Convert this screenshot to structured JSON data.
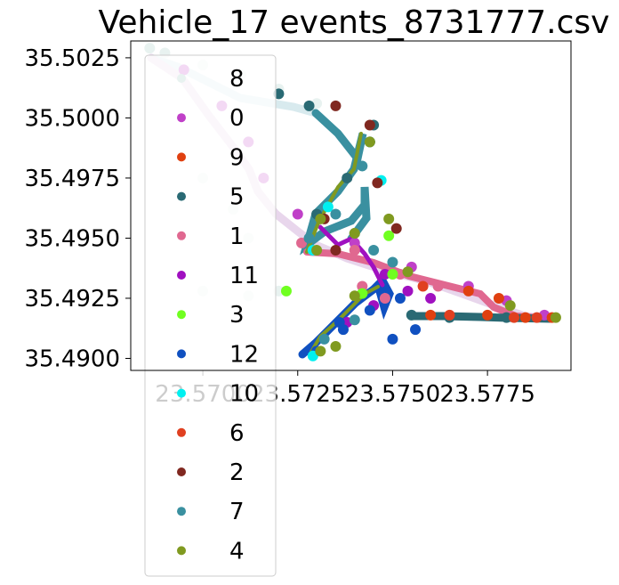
{
  "chart_data": {
    "type": "scatter",
    "title": "Vehicle_17 events_8731777.csv",
    "xlabel": "",
    "ylabel": "",
    "xlim": [
      23.5681,
      23.5797
    ],
    "ylim": [
      35.4895,
      35.5032
    ],
    "x_ticks": [
      23.57,
      23.5725,
      23.575,
      23.5775
    ],
    "x_tick_labels": [
      "23.5700",
      "23.5725",
      "23.5750",
      "23.5775"
    ],
    "y_ticks": [
      35.49,
      35.4925,
      35.495,
      35.4975,
      35.5,
      35.5025
    ],
    "y_tick_labels": [
      "35.4900",
      "35.4925",
      "35.4950",
      "35.4975",
      "35.5000",
      "35.5025"
    ],
    "grid": false,
    "legend_position": "top-left",
    "series": [
      {
        "name": "8",
        "color": "#e8f2f0",
        "points": [
          [
            23.5686,
            35.5029
          ],
          [
            23.569,
            35.5027
          ],
          [
            23.57,
            35.5022
          ],
          [
            23.571,
            35.5018
          ],
          [
            23.572,
            35.5012
          ],
          [
            23.573,
            35.5006
          ],
          [
            23.5735,
            35.5005
          ],
          [
            23.57,
            35.4975
          ],
          [
            23.5708,
            35.4962
          ],
          [
            23.5712,
            35.495
          ],
          [
            23.57,
            35.4928
          ],
          [
            23.5712,
            35.4926
          ],
          [
            23.572,
            35.4928
          ]
        ]
      },
      {
        "name": "0",
        "color": "#c040c8",
        "points": [
          [
            23.5695,
            35.502
          ],
          [
            23.5705,
            35.5005
          ],
          [
            23.5712,
            35.499
          ],
          [
            23.5716,
            35.4975
          ],
          [
            23.5725,
            35.496
          ],
          [
            23.574,
            35.4948
          ],
          [
            23.5755,
            35.4938
          ],
          [
            23.577,
            35.493
          ],
          [
            23.578,
            35.4924
          ],
          [
            23.579,
            35.4918
          ]
        ]
      },
      {
        "name": "9",
        "color": "#e04010",
        "points": [
          [
            23.576,
            35.4918
          ],
          [
            23.5775,
            35.4918
          ],
          [
            23.5785,
            35.4917
          ],
          [
            23.5792,
            35.4917
          ],
          [
            23.577,
            35.4928
          ],
          [
            23.5778,
            35.4925
          ]
        ]
      },
      {
        "name": "5",
        "color": "#2a6a74",
        "points": [
          [
            23.5755,
            35.4918
          ],
          [
            23.5765,
            35.4917
          ],
          [
            23.578,
            35.4917
          ],
          [
            23.573,
            35.496
          ],
          [
            23.5738,
            35.4975
          ],
          [
            23.5744,
            35.499
          ],
          [
            23.5745,
            35.4997
          ],
          [
            23.572,
            35.501
          ],
          [
            23.5728,
            35.5005
          ]
        ]
      },
      {
        "name": "1",
        "color": "#e06890",
        "points": [
          [
            23.5726,
            35.4948
          ],
          [
            23.574,
            35.4945
          ],
          [
            23.5752,
            35.4935
          ],
          [
            23.5762,
            35.493
          ],
          [
            23.5742,
            35.493
          ],
          [
            23.5748,
            35.4925
          ]
        ]
      },
      {
        "name": "11",
        "color": "#a010c0",
        "points": [
          [
            23.5748,
            35.4935
          ],
          [
            23.5754,
            35.4928
          ],
          [
            23.576,
            35.4925
          ],
          [
            23.5738,
            35.4915
          ],
          [
            23.5745,
            35.4922
          ]
        ]
      },
      {
        "name": "3",
        "color": "#70ff20",
        "points": [
          [
            23.5722,
            35.4928
          ],
          [
            23.5749,
            35.4951
          ],
          [
            23.5742,
            35.4927
          ],
          [
            23.575,
            35.4935
          ]
        ]
      },
      {
        "name": "12",
        "color": "#1050c0",
        "points": [
          [
            23.573,
            35.4903
          ],
          [
            23.5737,
            35.4912
          ],
          [
            23.5744,
            35.492
          ],
          [
            23.5752,
            35.4925
          ],
          [
            23.5756,
            35.4912
          ],
          [
            23.575,
            35.4908
          ],
          [
            23.5736,
            35.4915
          ]
        ]
      },
      {
        "name": "10",
        "color": "#00f0f0",
        "points": [
          [
            23.5729,
            35.4901
          ],
          [
            23.5729,
            35.4945
          ],
          [
            23.5747,
            35.4974
          ],
          [
            23.5733,
            35.4963
          ]
        ]
      },
      {
        "name": "6",
        "color": "#e04020",
        "points": [
          [
            23.5765,
            35.4918
          ],
          [
            23.5782,
            35.4917
          ],
          [
            23.5758,
            35.493
          ],
          [
            23.5788,
            35.4917
          ]
        ]
      },
      {
        "name": "2",
        "color": "#802820",
        "points": [
          [
            23.5735,
            35.4945
          ],
          [
            23.5732,
            35.4958
          ],
          [
            23.5746,
            35.4973
          ],
          [
            23.5744,
            35.4997
          ],
          [
            23.5735,
            35.5005
          ],
          [
            23.5751,
            35.4954
          ]
        ]
      },
      {
        "name": "7",
        "color": "#3a90a0",
        "points": [
          [
            23.5728,
            35.495
          ],
          [
            23.5735,
            35.496
          ],
          [
            23.5742,
            35.498
          ],
          [
            23.5744,
            35.499
          ],
          [
            23.574,
            35.4952
          ],
          [
            23.5745,
            35.4945
          ],
          [
            23.575,
            35.494
          ],
          [
            23.5732,
            35.4908
          ],
          [
            23.574,
            35.4916
          ]
        ]
      },
      {
        "name": "4",
        "color": "#809a20",
        "points": [
          [
            23.573,
            35.4945
          ],
          [
            23.574,
            35.4952
          ],
          [
            23.5744,
            35.499
          ],
          [
            23.5731,
            35.4958
          ],
          [
            23.5749,
            35.4958
          ],
          [
            23.5731,
            35.4903
          ],
          [
            23.5735,
            35.4905
          ],
          [
            23.5793,
            35.4917
          ],
          [
            23.5781,
            35.4922
          ],
          [
            23.574,
            35.4926
          ],
          [
            23.5754,
            35.4936
          ]
        ]
      }
    ]
  }
}
